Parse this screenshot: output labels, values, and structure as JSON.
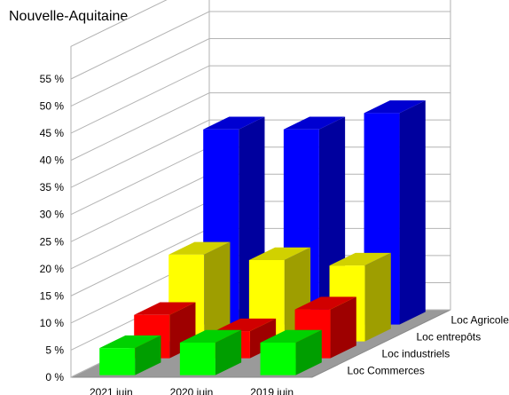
{
  "chart_data": {
    "type": "bar",
    "title": "Nouvelle-Aquitaine",
    "xlabel": "",
    "ylabel": "",
    "ylim": [
      0,
      55
    ],
    "y_ticks": [
      "0 %",
      "5 %",
      "10 %",
      "15 %",
      "20 %",
      "25 %",
      "30 %",
      "35 %",
      "40 %",
      "45 %",
      "50 %",
      "55 %"
    ],
    "categories": [
      "2021 juin",
      "2020 juin",
      "2019 juin"
    ],
    "series": [
      {
        "name": "Loc Commerces",
        "color": "#00ff00",
        "values": [
          5,
          6,
          6
        ]
      },
      {
        "name": "Loc industriels",
        "color": "#ff0000",
        "values": [
          8,
          5,
          9
        ]
      },
      {
        "name": "Loc entrepôts",
        "color": "#ffff00",
        "values": [
          16,
          15,
          14
        ]
      },
      {
        "name": "Loc Agricoles",
        "color": "#0000ff",
        "values": [
          36,
          36,
          39
        ]
      }
    ],
    "grid": true,
    "legend": "depth-axis-right"
  }
}
